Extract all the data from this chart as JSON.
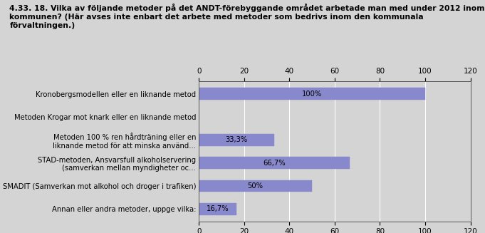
{
  "title_line1": "4.33. 18. Vilka av följande metoder på det ANDT-förebyggande området arbetade man med under 2012 inom",
  "title_line2": "kommunen? (Här avses inte enbart det arbete med metoder som bedrivs inom den kommunala",
  "title_line3": "förvaltningen.)",
  "categories": [
    "Kronobergsmodellen eller en liknande metod",
    "Metoden Krogar mot knark eller en liknande metod",
    "Metoden 100 % ren hårdträning eller en\nliknande metod för att minska använd...",
    "STAD-metoden, Ansvarsfull alkoholservering\n(samverkan mellan myndigheter oc...",
    "SMADIT (Samverkan mot alkohol och droger i trafiken)",
    "Annan eller andra metoder, uppge vilka:"
  ],
  "values": [
    100,
    0,
    33.3,
    66.7,
    50,
    16.7
  ],
  "labels": [
    "100%",
    "",
    "33,3%",
    "66,7%",
    "50%",
    "16,7%"
  ],
  "bar_color": "#8888cc",
  "background_color": "#d4d4d4",
  "plot_background": "#d4d4d4",
  "xlim": [
    0,
    120
  ],
  "xticks": [
    0,
    20,
    40,
    60,
    80,
    100,
    120
  ],
  "title_fontsize": 7.8,
  "label_fontsize": 7.2,
  "tick_fontsize": 7.5,
  "value_fontsize": 7.2
}
